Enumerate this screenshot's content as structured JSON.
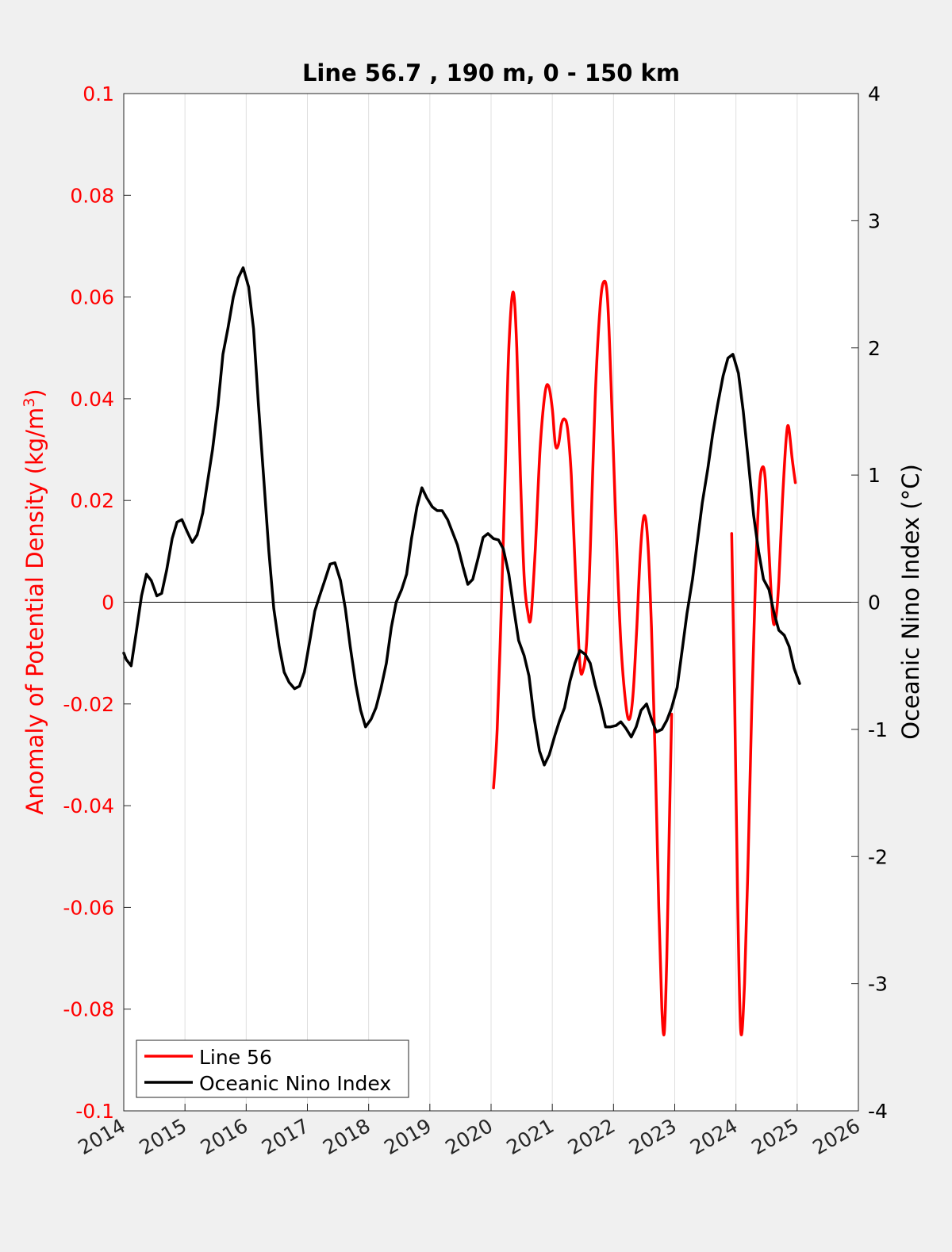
{
  "chart_data": {
    "type": "line",
    "title": "Line 56.7 , 190 m, 0 - 150 km",
    "xlim": [
      2014,
      2026
    ],
    "x_ticks": [
      "2014",
      "2015",
      "2016",
      "2017",
      "2018",
      "2019",
      "2020",
      "2021",
      "2022",
      "2023",
      "2024",
      "2025",
      "2026"
    ],
    "grid": "vertical",
    "legend_position": "bottom-left",
    "colors": {
      "left_axis": "#ff0000",
      "right_axis": "#000000",
      "background": "#f0f0f0",
      "plot_area": "#ffffff"
    },
    "y_left": {
      "label_main": "Anomaly of Potential Density (kg/m",
      "label_sup": "3",
      "label_close": ")",
      "lim": [
        -0.1,
        0.1
      ],
      "ticks": [
        "0.1",
        "0.08",
        "0.06",
        "0.04",
        "0.02",
        "0",
        "-0.02",
        "-0.04",
        "-0.06",
        "-0.08",
        "-0.1"
      ]
    },
    "y_right": {
      "label": "Oceanic Nino Index (°C)",
      "lim": [
        -4,
        4
      ],
      "ticks": [
        "4",
        "3",
        "2",
        "1",
        "0",
        "-1",
        "-2",
        "-3",
        "-4"
      ]
    },
    "series": [
      {
        "name": "Line 56",
        "axis": "left",
        "color": "#ff0000",
        "segments": [
          [
            [
              2020.04,
              -0.0365
            ],
            [
              2020.1,
              -0.025
            ],
            [
              2020.17,
              0.0
            ],
            [
              2020.23,
              0.025
            ],
            [
              2020.29,
              0.05
            ],
            [
              2020.36,
              0.061
            ],
            [
              2020.42,
              0.05
            ],
            [
              2020.48,
              0.025
            ],
            [
              2020.54,
              0.005
            ],
            [
              2020.6,
              -0.002
            ],
            [
              2020.65,
              -0.003
            ],
            [
              2020.72,
              0.01
            ],
            [
              2020.8,
              0.03
            ],
            [
              2020.88,
              0.041
            ],
            [
              2020.94,
              0.0425
            ],
            [
              2021.0,
              0.038
            ],
            [
              2021.05,
              0.031
            ],
            [
              2021.1,
              0.031
            ],
            [
              2021.15,
              0.035
            ],
            [
              2021.2,
              0.036
            ],
            [
              2021.25,
              0.034
            ],
            [
              2021.31,
              0.025
            ],
            [
              2021.38,
              0.005
            ],
            [
              2021.45,
              -0.012
            ],
            [
              2021.5,
              -0.0135
            ],
            [
              2021.56,
              -0.008
            ],
            [
              2021.62,
              0.01
            ],
            [
              2021.7,
              0.04
            ],
            [
              2021.78,
              0.058
            ],
            [
              2021.84,
              0.063
            ],
            [
              2021.9,
              0.06
            ],
            [
              2021.96,
              0.043
            ],
            [
              2022.04,
              0.015
            ],
            [
              2022.12,
              -0.008
            ],
            [
              2022.2,
              -0.02
            ],
            [
              2022.26,
              -0.023
            ],
            [
              2022.32,
              -0.018
            ],
            [
              2022.38,
              -0.005
            ],
            [
              2022.44,
              0.01
            ],
            [
              2022.5,
              0.017
            ],
            [
              2022.56,
              0.012
            ],
            [
              2022.62,
              -0.005
            ],
            [
              2022.68,
              -0.03
            ],
            [
              2022.74,
              -0.06
            ],
            [
              2022.79,
              -0.08
            ],
            [
              2022.83,
              -0.0845
            ],
            [
              2022.87,
              -0.07
            ],
            [
              2022.91,
              -0.045
            ],
            [
              2022.95,
              -0.022
            ]
          ],
          [
            [
              2023.93,
              0.0135
            ],
            [
              2023.98,
              -0.02
            ],
            [
              2024.03,
              -0.06
            ],
            [
              2024.08,
              -0.0845
            ],
            [
              2024.14,
              -0.075
            ],
            [
              2024.2,
              -0.05
            ],
            [
              2024.26,
              -0.02
            ],
            [
              2024.32,
              0.005
            ],
            [
              2024.38,
              0.022
            ],
            [
              2024.43,
              0.0265
            ],
            [
              2024.48,
              0.024
            ],
            [
              2024.54,
              0.01
            ],
            [
              2024.6,
              -0.003
            ],
            [
              2024.65,
              -0.0033
            ],
            [
              2024.7,
              0.004
            ],
            [
              2024.76,
              0.02
            ],
            [
              2024.82,
              0.032
            ],
            [
              2024.86,
              0.0345
            ],
            [
              2024.92,
              0.028
            ],
            [
              2024.97,
              0.0235
            ]
          ]
        ]
      },
      {
        "name": "Oceanic Nino Index",
        "axis": "right",
        "color": "#000000",
        "points": [
          [
            2014.0,
            -0.4
          ],
          [
            2014.04,
            -0.45
          ],
          [
            2014.12,
            -0.5
          ],
          [
            2014.2,
            -0.25
          ],
          [
            2014.29,
            0.05
          ],
          [
            2014.37,
            0.22
          ],
          [
            2014.45,
            0.17
          ],
          [
            2014.54,
            0.05
          ],
          [
            2014.62,
            0.07
          ],
          [
            2014.7,
            0.25
          ],
          [
            2014.79,
            0.5
          ],
          [
            2014.87,
            0.63
          ],
          [
            2014.95,
            0.65
          ],
          [
            2015.04,
            0.55
          ],
          [
            2015.12,
            0.47
          ],
          [
            2015.2,
            0.53
          ],
          [
            2015.29,
            0.7
          ],
          [
            2015.37,
            0.95
          ],
          [
            2015.45,
            1.2
          ],
          [
            2015.54,
            1.55
          ],
          [
            2015.62,
            1.95
          ],
          [
            2015.7,
            2.15
          ],
          [
            2015.79,
            2.4
          ],
          [
            2015.87,
            2.55
          ],
          [
            2015.95,
            2.63
          ],
          [
            2016.04,
            2.48
          ],
          [
            2016.12,
            2.15
          ],
          [
            2016.2,
            1.55
          ],
          [
            2016.29,
            0.95
          ],
          [
            2016.37,
            0.4
          ],
          [
            2016.45,
            -0.05
          ],
          [
            2016.54,
            -0.35
          ],
          [
            2016.62,
            -0.55
          ],
          [
            2016.7,
            -0.63
          ],
          [
            2016.79,
            -0.68
          ],
          [
            2016.87,
            -0.66
          ],
          [
            2016.95,
            -0.55
          ],
          [
            2017.04,
            -0.3
          ],
          [
            2017.12,
            -0.07
          ],
          [
            2017.2,
            0.05
          ],
          [
            2017.29,
            0.18
          ],
          [
            2017.37,
            0.3
          ],
          [
            2017.45,
            0.31
          ],
          [
            2017.54,
            0.17
          ],
          [
            2017.62,
            -0.05
          ],
          [
            2017.7,
            -0.35
          ],
          [
            2017.79,
            -0.65
          ],
          [
            2017.87,
            -0.85
          ],
          [
            2017.95,
            -0.98
          ],
          [
            2018.04,
            -0.92
          ],
          [
            2018.12,
            -0.83
          ],
          [
            2018.2,
            -0.68
          ],
          [
            2018.29,
            -0.48
          ],
          [
            2018.37,
            -0.2
          ],
          [
            2018.45,
            0.0
          ],
          [
            2018.54,
            0.1
          ],
          [
            2018.62,
            0.22
          ],
          [
            2018.7,
            0.5
          ],
          [
            2018.79,
            0.75
          ],
          [
            2018.87,
            0.9
          ],
          [
            2018.95,
            0.82
          ],
          [
            2019.04,
            0.75
          ],
          [
            2019.12,
            0.72
          ],
          [
            2019.2,
            0.72
          ],
          [
            2019.29,
            0.65
          ],
          [
            2019.37,
            0.55
          ],
          [
            2019.45,
            0.45
          ],
          [
            2019.54,
            0.28
          ],
          [
            2019.62,
            0.14
          ],
          [
            2019.7,
            0.18
          ],
          [
            2019.79,
            0.35
          ],
          [
            2019.87,
            0.51
          ],
          [
            2019.95,
            0.54
          ],
          [
            2020.04,
            0.5
          ],
          [
            2020.12,
            0.49
          ],
          [
            2020.2,
            0.42
          ],
          [
            2020.29,
            0.22
          ],
          [
            2020.37,
            -0.05
          ],
          [
            2020.45,
            -0.3
          ],
          [
            2020.54,
            -0.42
          ],
          [
            2020.62,
            -0.58
          ],
          [
            2020.7,
            -0.9
          ],
          [
            2020.79,
            -1.17
          ],
          [
            2020.87,
            -1.28
          ],
          [
            2020.95,
            -1.2
          ],
          [
            2021.04,
            -1.05
          ],
          [
            2021.12,
            -0.93
          ],
          [
            2021.2,
            -0.83
          ],
          [
            2021.29,
            -0.62
          ],
          [
            2021.37,
            -0.48
          ],
          [
            2021.45,
            -0.38
          ],
          [
            2021.54,
            -0.41
          ],
          [
            2021.62,
            -0.48
          ],
          [
            2021.7,
            -0.65
          ],
          [
            2021.79,
            -0.81
          ],
          [
            2021.87,
            -0.98
          ],
          [
            2021.95,
            -0.98
          ],
          [
            2022.04,
            -0.97
          ],
          [
            2022.12,
            -0.94
          ],
          [
            2022.2,
            -0.99
          ],
          [
            2022.29,
            -1.06
          ],
          [
            2022.37,
            -0.98
          ],
          [
            2022.45,
            -0.85
          ],
          [
            2022.54,
            -0.8
          ],
          [
            2022.62,
            -0.92
          ],
          [
            2022.7,
            -1.02
          ],
          [
            2022.79,
            -1.0
          ],
          [
            2022.87,
            -0.93
          ],
          [
            2022.95,
            -0.83
          ],
          [
            2023.04,
            -0.67
          ],
          [
            2023.12,
            -0.38
          ],
          [
            2023.2,
            -0.09
          ],
          [
            2023.29,
            0.18
          ],
          [
            2023.37,
            0.48
          ],
          [
            2023.45,
            0.78
          ],
          [
            2023.54,
            1.05
          ],
          [
            2023.62,
            1.32
          ],
          [
            2023.7,
            1.55
          ],
          [
            2023.79,
            1.78
          ],
          [
            2023.87,
            1.92
          ],
          [
            2023.95,
            1.95
          ],
          [
            2024.04,
            1.8
          ],
          [
            2024.12,
            1.5
          ],
          [
            2024.2,
            1.12
          ],
          [
            2024.29,
            0.68
          ],
          [
            2024.37,
            0.4
          ],
          [
            2024.45,
            0.18
          ],
          [
            2024.54,
            0.1
          ],
          [
            2024.62,
            -0.08
          ],
          [
            2024.7,
            -0.22
          ],
          [
            2024.79,
            -0.26
          ],
          [
            2024.87,
            -0.35
          ],
          [
            2024.95,
            -0.52
          ],
          [
            2025.04,
            -0.64
          ]
        ]
      }
    ]
  }
}
